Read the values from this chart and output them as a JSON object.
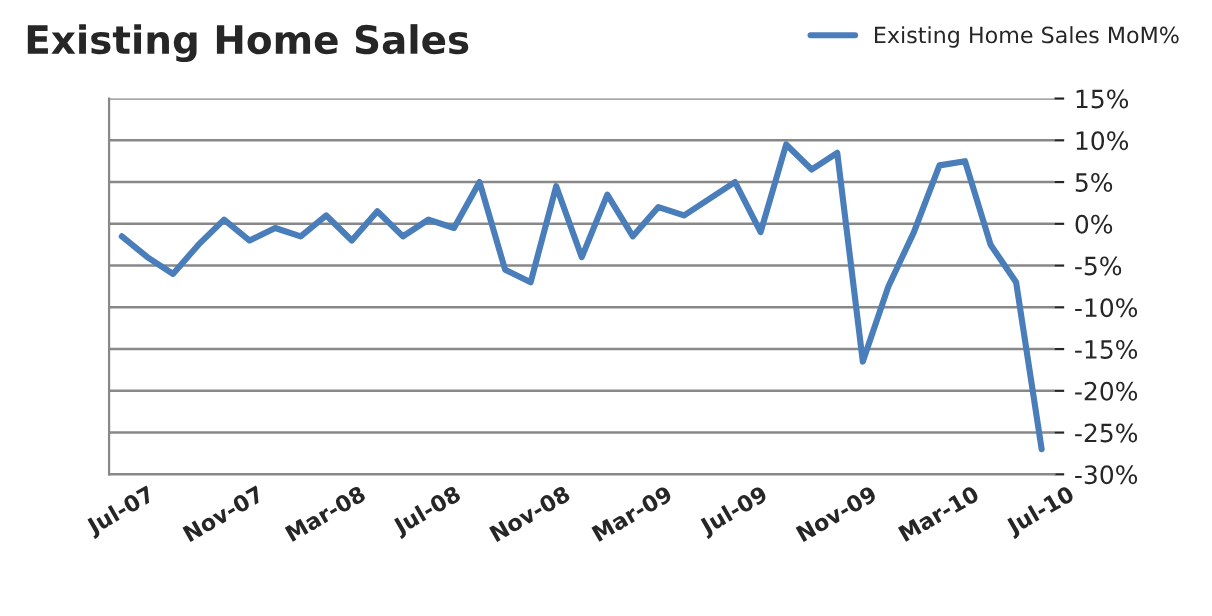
{
  "chart_data": {
    "type": "line",
    "title": "Existing Home Sales",
    "categories": [
      "Jul-07",
      null,
      null,
      null,
      "Nov-07",
      null,
      null,
      null,
      "Mar-08",
      null,
      null,
      null,
      "Jul-08",
      null,
      null,
      null,
      "Nov-08",
      null,
      null,
      null,
      "Mar-09",
      null,
      null,
      null,
      "Jul-09",
      null,
      null,
      null,
      "Nov-09",
      null,
      null,
      null,
      "Mar-10",
      null,
      null,
      null,
      "Jul-10"
    ],
    "series": [
      {
        "name": "Existing Home Sales MoM%",
        "color": "#4a7ebb",
        "values": [
          -1.5,
          -4,
          -6,
          -2.5,
          0.5,
          -2,
          -0.5,
          -1.5,
          1,
          -2,
          1.5,
          -1.5,
          0.5,
          -0.5,
          5,
          -5.5,
          -7,
          4.5,
          -4,
          3.5,
          -1.5,
          2,
          1,
          3,
          5,
          -1,
          9.5,
          6.5,
          8.5,
          -16.5,
          -7.5,
          -1,
          7,
          7.5,
          -2.5,
          -7,
          -27
        ]
      }
    ],
    "ylim": [
      -30,
      15
    ],
    "yticks": [
      {
        "value": 15,
        "label": "15%"
      },
      {
        "value": 10,
        "label": "10%"
      },
      {
        "value": 5,
        "label": "5%"
      },
      {
        "value": 0,
        "label": "0%"
      },
      {
        "value": -5,
        "label": "-5%"
      },
      {
        "value": -10,
        "label": "-10%"
      },
      {
        "value": -15,
        "label": "-15%"
      },
      {
        "value": -20,
        "label": "-20%"
      },
      {
        "value": -25,
        "label": "-25%"
      },
      {
        "value": -30,
        "label": "-30%"
      }
    ],
    "grid": "y",
    "legend": "top right",
    "marker": "none",
    "line_style": "solid"
  }
}
